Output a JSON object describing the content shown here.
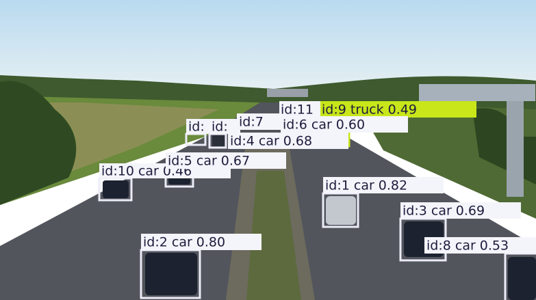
{
  "detections": [
    {
      "label": "id:"
    },
    {
      "label": "id:"
    },
    {
      "label": "id:7"
    },
    {
      "label": "id:11"
    },
    {
      "label": "id:9 truck 0.49"
    },
    {
      "label": "id:6 car 0.60"
    },
    {
      "label": "id:4 car 0.68"
    },
    {
      "label": "id:5 car 0.67"
    },
    {
      "label": "id:10 car 0.46"
    },
    {
      "label": "id:1 car 0.82"
    },
    {
      "label": "id:3 car 0.69"
    },
    {
      "label": "id:8 car 0.53"
    },
    {
      "label": "id:2 car 0.80"
    }
  ]
}
